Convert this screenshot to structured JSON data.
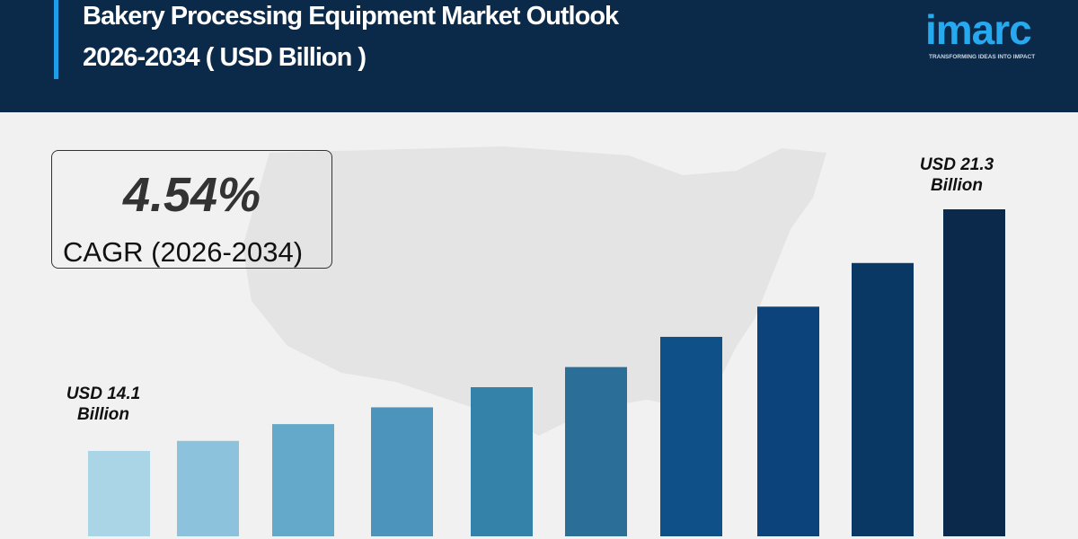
{
  "header": {
    "title_line1": "Bakery Processing Equipment Market Outlook",
    "title_line2": "2026-2034 ( USD Billion )"
  },
  "logo": {
    "word": "imarc",
    "tagline": "TRANSFORMING IDEAS INTO IMPACT"
  },
  "cagr": {
    "value": "4.54%",
    "label": "CAGR (2026-2034)"
  },
  "colors": {
    "header_bg": "#0b2a4a",
    "accent": "#1e9ee8",
    "logo": "#27a9f0"
  },
  "chart_data": {
    "type": "bar",
    "title": "Bakery Processing Equipment Market Outlook 2026-2034 ( USD Billion )",
    "values": [
      14.1,
      14.4,
      14.9,
      15.4,
      16.0,
      16.6,
      17.5,
      18.4,
      19.7,
      21.3
    ],
    "colors": [
      "#a9d5e7",
      "#8cc2dc",
      "#64a8ca",
      "#4d94bc",
      "#3481a9",
      "#2b6f98",
      "#0e5087",
      "#0c437a",
      "#0a3864",
      "#0b2a4b"
    ],
    "annotations": [
      {
        "line1": "USD 14.1",
        "line2": "Billion"
      },
      {
        "line1": "USD 21.3",
        "line2": "Billion"
      }
    ],
    "grid": false
  }
}
